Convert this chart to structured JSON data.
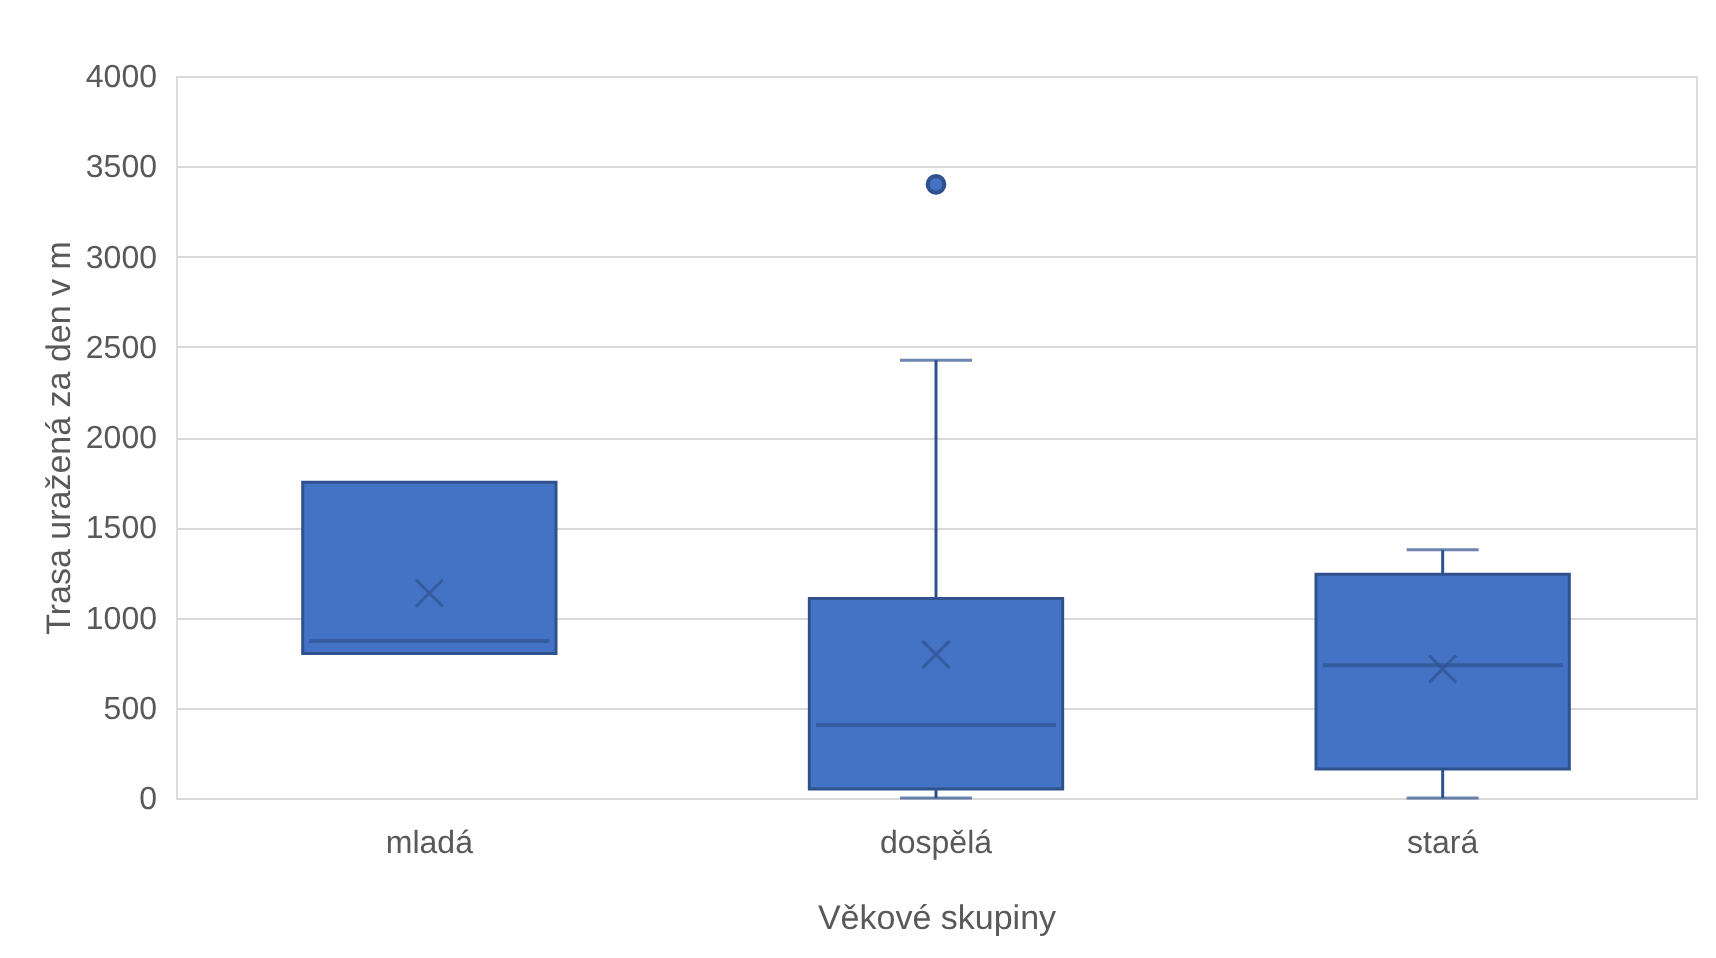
{
  "chart_data": {
    "type": "box",
    "categories": [
      "mladá",
      "dospělá",
      "stará"
    ],
    "xlabel": "Věkové skupiny",
    "ylabel": "Trasa uražená za den v m",
    "color": "#4472c4",
    "boxes": [
      {
        "low": 800,
        "q1": 800,
        "median": 870,
        "q3": 1750,
        "high": 1750,
        "mean": 1135
      },
      {
        "low": 0,
        "q1": 50,
        "median": 405,
        "q3": 1105,
        "high": 2425,
        "mean": 795,
        "outliers": [
          3400
        ]
      },
      {
        "low": 0,
        "q1": 160,
        "median": 735,
        "q3": 1240,
        "high": 1375,
        "mean": 715
      }
    ],
    "ylim": [
      0,
      4000
    ],
    "yticks": [
      0,
      500,
      1000,
      1500,
      2000,
      2500,
      3000,
      3500,
      4000
    ],
    "grid": "y",
    "marker": "cross"
  }
}
